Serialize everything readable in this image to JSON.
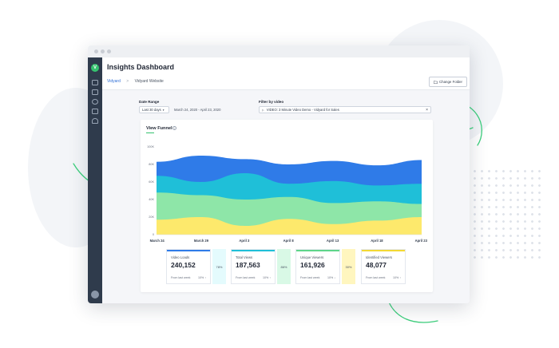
{
  "app": {
    "title": "Insights Dashboard"
  },
  "breadcrumb": {
    "root": "Vidyard",
    "separator": ">",
    "current": "Vidyard Website"
  },
  "toolbar": {
    "change_folder_label": "Change Folder"
  },
  "filters": {
    "date_range_label": "Date Range",
    "date_preset": "Last 30 days",
    "date_text": "March 24, 2020 - April 23, 2020",
    "video_filter_label": "Filter by video",
    "video_value": "VIDEO: 3 Minute Video Demo - Vidyard for Sales",
    "clear_symbol": "×"
  },
  "chart": {
    "title": "View Funnel",
    "info": "i",
    "y_ticks": [
      "100K",
      "80K",
      "60K",
      "40K",
      "20K",
      "0"
    ],
    "x_ticks": [
      "March 24",
      "March 29",
      "April 3",
      "April 8",
      "April 13",
      "April 18",
      "April 23"
    ]
  },
  "chart_data": {
    "type": "area",
    "x": [
      "March 24",
      "March 29",
      "April 3",
      "April 8",
      "April 13",
      "April 18",
      "April 23"
    ],
    "ylim": [
      0,
      100000
    ],
    "series": [
      {
        "name": "Video Loads",
        "color": "#2f7be8",
        "values": [
          83000,
          90000,
          86000,
          80000,
          84000,
          79000,
          85000
        ]
      },
      {
        "name": "Total Views",
        "color": "#1fbfd8",
        "values": [
          67000,
          60000,
          70000,
          58000,
          61000,
          56000,
          58000
        ]
      },
      {
        "name": "Unique Viewers",
        "color": "#8ee6a8",
        "values": [
          48000,
          45000,
          40000,
          43000,
          36000,
          38000,
          35000
        ]
      },
      {
        "name": "Identified Viewers",
        "color": "#fde96c",
        "values": [
          17000,
          20000,
          10000,
          18000,
          12000,
          16000,
          20000
        ]
      }
    ]
  },
  "stats": [
    {
      "label": "Video Loads",
      "value": "240,152",
      "from": "From last week",
      "pct": "10% ↑",
      "color": "#2f7be8"
    },
    {
      "label": "Total Views",
      "value": "187,563",
      "from": "From last week",
      "pct": "10% ↑",
      "color": "#1fbfd8"
    },
    {
      "label": "Unique Viewers",
      "value": "161,926",
      "from": "From last week",
      "pct": "10% ↓",
      "color": "#5fd58a"
    },
    {
      "label": "Identified Viewers",
      "value": "48,077",
      "from": "From last week",
      "pct": "10% ↑",
      "color": "#f3d934"
    }
  ],
  "conversions": [
    "78%",
    "86%",
    "30%",
    "75%"
  ],
  "colors": {
    "sidebar": "#2f3b4c",
    "accent_green": "#35c26e",
    "link_blue": "#2f6fd6"
  },
  "icons": [
    "vidyard-logo-icon",
    "chat-icon",
    "chart-icon",
    "gear-icon",
    "network-icon",
    "users-icon",
    "folder-icon",
    "video-icon",
    "close-icon"
  ]
}
